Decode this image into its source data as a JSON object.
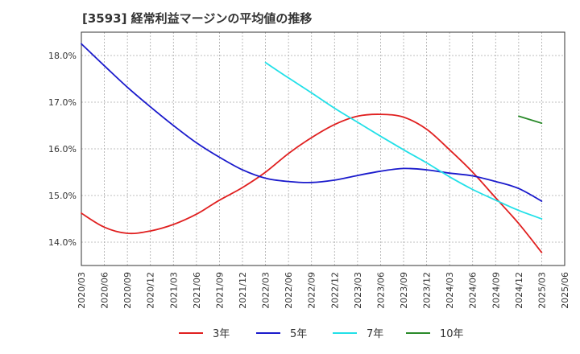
{
  "chart_data": {
    "type": "line",
    "title": "[3593]  経常利益マージンの平均値の推移",
    "xlabel": "",
    "ylabel": "",
    "x_ticks": [
      "2020/03",
      "2020/06",
      "2020/09",
      "2020/12",
      "2021/03",
      "2021/06",
      "2021/09",
      "2021/12",
      "2022/03",
      "2022/06",
      "2022/09",
      "2022/12",
      "2023/03",
      "2023/06",
      "2023/09",
      "2023/12",
      "2024/03",
      "2024/06",
      "2024/09",
      "2024/12",
      "2025/03",
      "2025/06"
    ],
    "y_ticks": [
      14.0,
      15.0,
      16.0,
      17.0,
      18.0
    ],
    "y_tick_labels": [
      "14.0%",
      "15.0%",
      "16.0%",
      "17.0%",
      "18.0%"
    ],
    "ylim": [
      13.5,
      18.5
    ],
    "grid": true,
    "legend_position": "bottom",
    "series": [
      {
        "name": "3年",
        "color": "#e02020",
        "x": [
          "2020/03",
          "2020/06",
          "2020/09",
          "2020/12",
          "2021/03",
          "2021/06",
          "2021/09",
          "2021/12",
          "2022/03",
          "2022/06",
          "2022/09",
          "2022/12",
          "2023/03",
          "2023/06",
          "2023/09",
          "2023/12",
          "2024/03",
          "2024/06",
          "2024/09",
          "2024/12",
          "2025/03"
        ],
        "values": [
          14.62,
          14.32,
          14.19,
          14.24,
          14.38,
          14.6,
          14.9,
          15.17,
          15.5,
          15.9,
          16.24,
          16.52,
          16.7,
          16.74,
          16.68,
          16.42,
          15.98,
          15.5,
          14.95,
          14.4,
          13.78
        ]
      },
      {
        "name": "5年",
        "color": "#1a1acc",
        "x": [
          "2020/03",
          "2020/06",
          "2020/09",
          "2020/12",
          "2021/03",
          "2021/06",
          "2021/09",
          "2021/12",
          "2022/03",
          "2022/06",
          "2022/09",
          "2022/12",
          "2023/03",
          "2023/06",
          "2023/09",
          "2023/12",
          "2024/03",
          "2024/06",
          "2024/09",
          "2024/12",
          "2025/03"
        ],
        "values": [
          18.25,
          17.78,
          17.32,
          16.9,
          16.5,
          16.13,
          15.82,
          15.55,
          15.37,
          15.3,
          15.28,
          15.33,
          15.43,
          15.52,
          15.58,
          15.55,
          15.48,
          15.42,
          15.3,
          15.15,
          14.88
        ]
      },
      {
        "name": "7年",
        "color": "#22e0e8",
        "x": [
          "2022/03",
          "2022/06",
          "2022/09",
          "2022/12",
          "2023/03",
          "2023/06",
          "2023/09",
          "2023/12",
          "2024/03",
          "2024/06",
          "2024/09",
          "2024/12",
          "2025/03"
        ],
        "values": [
          17.85,
          17.52,
          17.2,
          16.87,
          16.57,
          16.27,
          15.98,
          15.7,
          15.4,
          15.13,
          14.9,
          14.68,
          14.5
        ]
      },
      {
        "name": "10年",
        "color": "#2a8a2a",
        "x": [
          "2024/12",
          "2025/03"
        ],
        "values": [
          16.7,
          16.55
        ]
      }
    ]
  }
}
